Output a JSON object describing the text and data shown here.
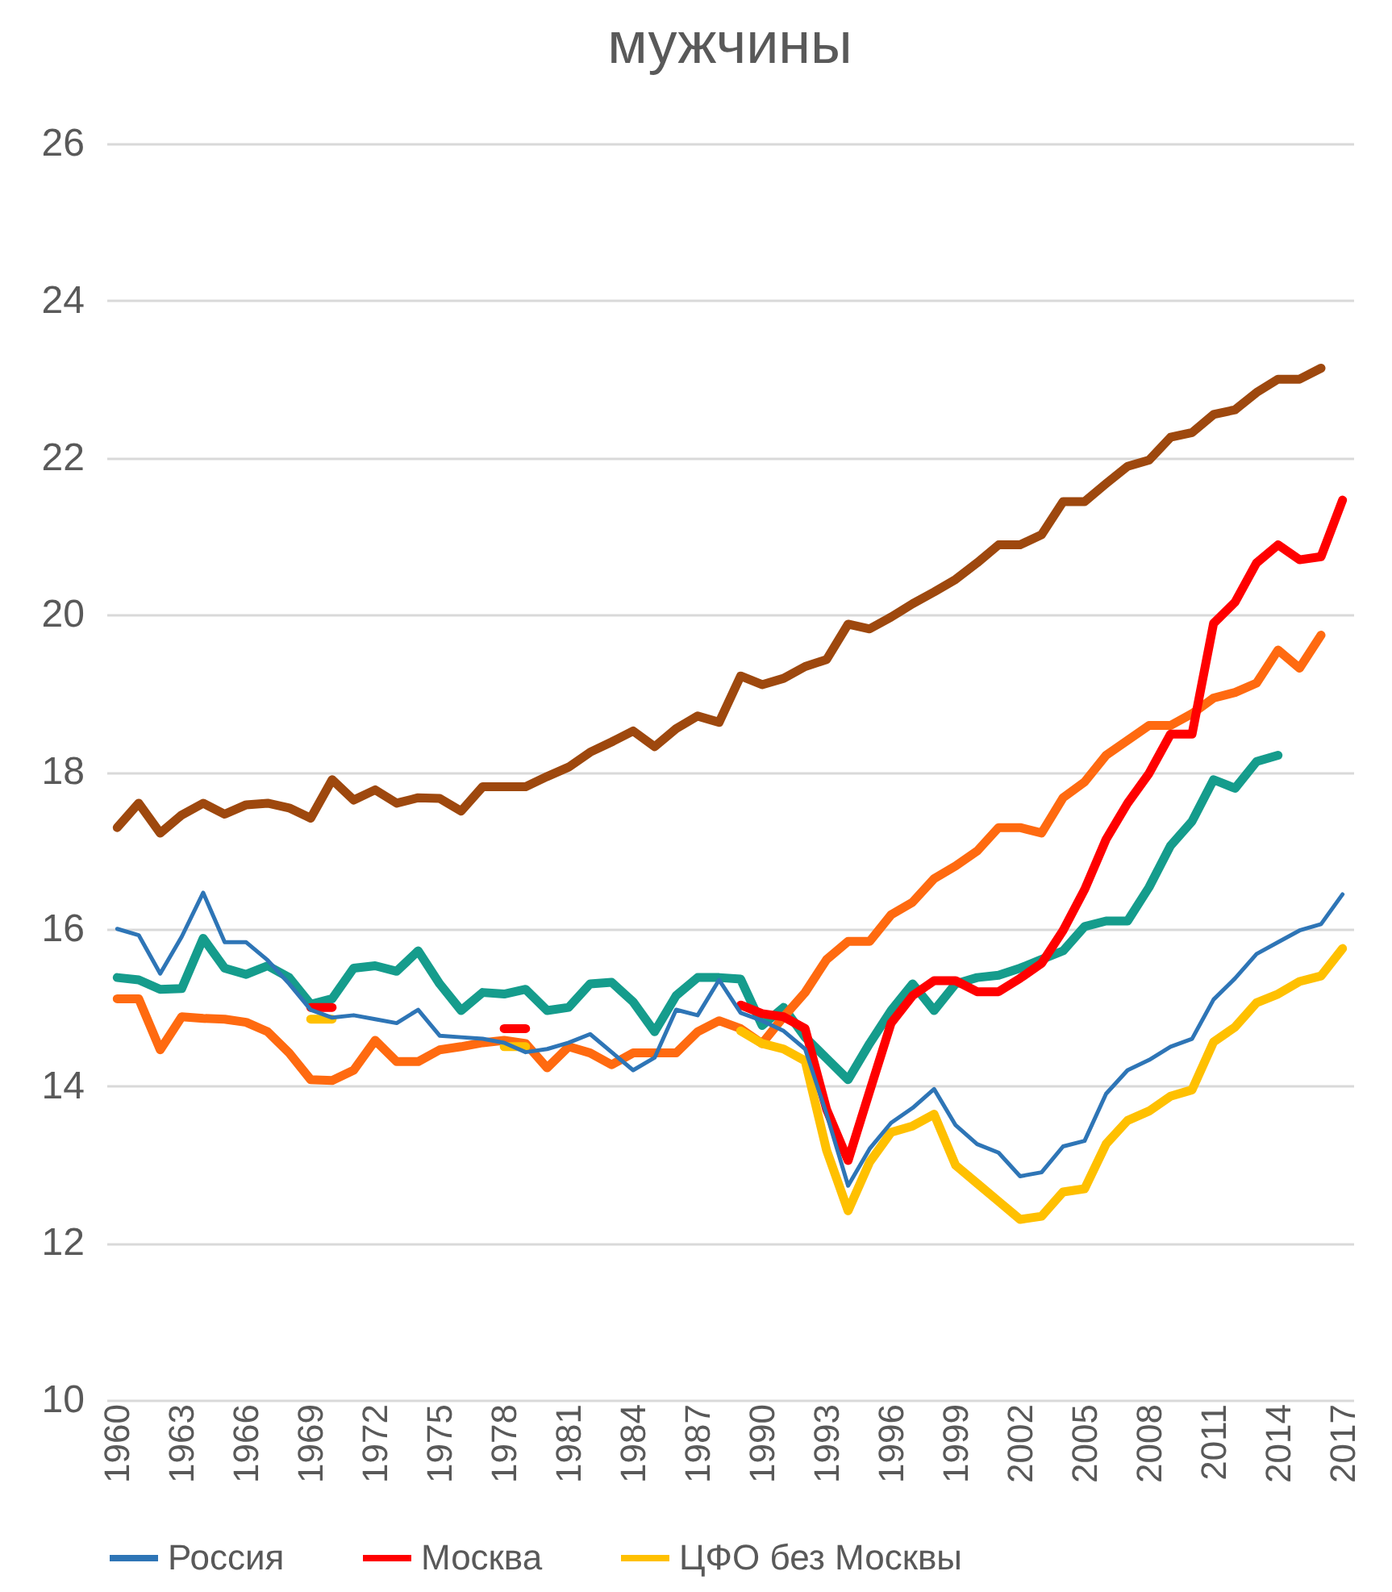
{
  "chart_data": {
    "type": "line",
    "title": "мужчины",
    "categories": [
      "1960",
      null,
      null,
      "1963",
      null,
      null,
      "1966",
      null,
      null,
      "1969",
      null,
      null,
      "1972",
      null,
      null,
      "1975",
      null,
      null,
      "1978",
      null,
      null,
      "1981",
      null,
      null,
      "1984",
      null,
      null,
      "1987",
      null,
      null,
      "1990",
      null,
      null,
      "1993",
      null,
      null,
      "1996",
      null,
      null,
      "1999",
      null,
      null,
      "2002",
      null,
      null,
      "2005",
      null,
      null,
      "2008",
      null,
      null,
      "2011",
      null,
      null,
      "2014",
      null,
      null,
      "2017"
    ],
    "series": [
      {
        "name": "Россия",
        "color": "#2e75b6",
        "values": [
          16.0,
          15.92,
          15.43,
          15.9,
          16.46,
          15.83,
          15.83,
          15.6,
          15.3,
          14.97,
          14.87,
          14.9,
          14.85,
          14.8,
          14.97,
          14.64,
          14.62,
          14.6,
          14.55,
          14.43,
          14.47,
          14.55,
          14.66,
          14.43,
          14.2,
          14.36,
          14.97,
          14.9,
          15.35,
          14.93,
          14.83,
          14.7,
          14.47,
          13.64,
          12.73,
          13.2,
          13.53,
          13.72,
          13.96,
          13.5,
          13.26,
          13.15,
          12.85,
          12.9,
          13.23,
          13.3,
          13.9,
          14.2,
          14.33,
          14.5,
          14.6,
          15.1,
          15.37,
          15.68,
          15.83,
          15.98,
          16.06,
          16.44
        ]
      },
      {
        "name": "Москва",
        "color": "#ff0000",
        "values": [
          null,
          null,
          null,
          null,
          null,
          null,
          null,
          null,
          null,
          15.0,
          15.0,
          null,
          null,
          null,
          null,
          null,
          null,
          null,
          14.73,
          14.73,
          null,
          null,
          null,
          null,
          null,
          null,
          null,
          null,
          null,
          15.03,
          14.92,
          14.88,
          14.73,
          13.7,
          13.05,
          13.93,
          14.8,
          15.15,
          15.34,
          15.34,
          15.2,
          15.2,
          15.37,
          15.56,
          15.98,
          16.5,
          17.14,
          17.6,
          17.98,
          18.48,
          18.48,
          19.89,
          20.16,
          20.66,
          20.89,
          20.7,
          20.74,
          21.46
        ]
      },
      {
        "name": "ЦФО без Москвы",
        "color": "#ffc000",
        "values": [
          null,
          null,
          null,
          null,
          null,
          null,
          null,
          null,
          null,
          14.85,
          14.85,
          null,
          null,
          null,
          null,
          null,
          null,
          null,
          14.5,
          14.5,
          null,
          null,
          null,
          null,
          null,
          null,
          null,
          null,
          null,
          14.7,
          14.54,
          14.47,
          14.32,
          13.18,
          12.41,
          13.03,
          13.41,
          13.49,
          13.64,
          12.99,
          12.76,
          12.53,
          12.3,
          12.34,
          12.65,
          12.69,
          13.26,
          13.56,
          13.68,
          13.87,
          13.95,
          14.56,
          14.75,
          15.06,
          15.17,
          15.33,
          15.4,
          15.75
        ]
      },
      {
        "color": "#9e480e",
        "values": [
          17.29,
          17.6,
          17.22,
          17.45,
          17.6,
          17.46,
          17.58,
          17.6,
          17.54,
          17.41,
          17.9,
          17.64,
          17.77,
          17.6,
          17.67,
          17.66,
          17.5,
          17.81,
          17.81,
          17.81,
          17.94,
          18.06,
          18.25,
          18.38,
          18.52,
          18.32,
          18.55,
          18.71,
          18.63,
          19.22,
          19.11,
          19.19,
          19.34,
          19.43,
          19.88,
          19.82,
          19.97,
          20.14,
          20.29,
          20.45,
          20.66,
          20.89,
          20.89,
          21.02,
          21.44,
          21.44,
          21.67,
          21.89,
          21.97,
          22.26,
          22.32,
          22.55,
          22.61,
          22.83,
          23.0,
          23.0,
          23.14,
          null
        ]
      },
      {
        "color": "#ff6a10",
        "values": [
          15.11,
          15.11,
          14.46,
          14.88,
          14.86,
          14.85,
          14.81,
          14.69,
          14.42,
          14.08,
          14.07,
          14.2,
          14.58,
          14.31,
          14.31,
          14.46,
          14.5,
          14.55,
          14.58,
          14.54,
          14.23,
          14.5,
          14.42,
          14.27,
          14.42,
          14.42,
          14.42,
          14.69,
          14.83,
          14.73,
          14.54,
          14.88,
          15.19,
          15.61,
          15.84,
          15.84,
          16.18,
          16.34,
          16.64,
          16.8,
          16.99,
          17.29,
          17.29,
          17.22,
          17.67,
          17.87,
          18.21,
          18.4,
          18.59,
          18.59,
          18.74,
          18.94,
          19.01,
          19.13,
          19.55,
          19.32,
          19.74,
          null
        ]
      },
      {
        "color": "#159c8c",
        "values": [
          15.38,
          15.35,
          15.23,
          15.24,
          15.88,
          15.5,
          15.42,
          15.53,
          15.38,
          15.04,
          15.11,
          15.5,
          15.53,
          15.46,
          15.72,
          15.3,
          14.96,
          15.19,
          15.17,
          15.23,
          14.96,
          15.0,
          15.3,
          15.32,
          15.07,
          14.69,
          15.15,
          15.38,
          15.38,
          15.36,
          14.77,
          15.0,
          14.62,
          14.35,
          14.08,
          14.54,
          14.96,
          15.3,
          14.96,
          15.3,
          15.38,
          15.41,
          15.5,
          15.61,
          15.72,
          16.03,
          16.1,
          16.1,
          16.53,
          17.06,
          17.37,
          17.9,
          17.79,
          18.13,
          18.21,
          null,
          null,
          null
        ]
      }
    ],
    "ylim": [
      10,
      26
    ],
    "yticks": [
      10,
      12,
      14,
      16,
      18,
      20,
      22,
      24,
      26
    ],
    "grid": "y",
    "legend": "bottom"
  }
}
